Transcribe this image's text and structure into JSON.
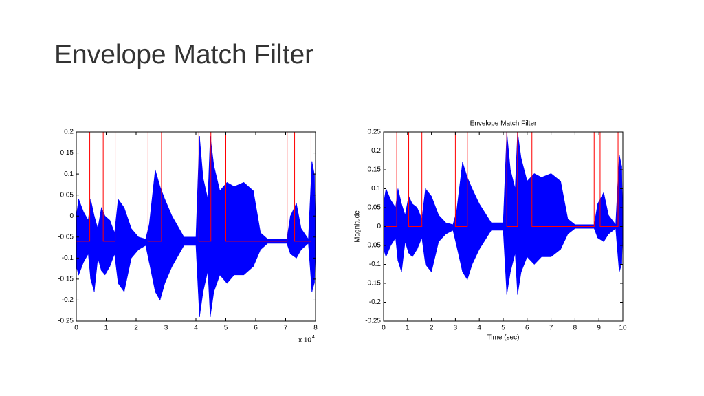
{
  "slide_title": "Envelope Match Filter",
  "chart_data": [
    {
      "type": "envelope",
      "xlim": [
        0,
        8
      ],
      "xticks": [
        0,
        1,
        2,
        3,
        4,
        5,
        6,
        7,
        8
      ],
      "ylim": [
        -0.25,
        0.2
      ],
      "yticks": [
        -0.25,
        -0.2,
        -0.15,
        -0.1,
        -0.05,
        0,
        0.05,
        0.1,
        0.15,
        0.2
      ],
      "x_multiplier": "x 10",
      "x_exponent": "4",
      "signal": {
        "color": "#0000ff",
        "x": [
          0,
          0.08,
          0.24,
          0.4,
          0.48,
          0.6,
          0.72,
          0.84,
          0.96,
          1.12,
          1.28,
          1.4,
          1.6,
          1.84,
          2.08,
          2.32,
          2.44,
          2.64,
          2.8,
          2.96,
          3.2,
          3.6,
          3.84,
          4,
          4.12,
          4.24,
          4.4,
          4.48,
          4.6,
          4.8,
          5.04,
          5.28,
          5.6,
          5.92,
          6.16,
          6.4,
          6.8,
          7.04,
          7.16,
          7.36,
          7.52,
          7.76,
          7.88,
          7.96,
          8
        ],
        "upper": [
          0,
          0.04,
          0.01,
          -0.01,
          0.04,
          0,
          -0.03,
          0.02,
          0,
          -0.01,
          -0.04,
          0.04,
          0.02,
          -0.03,
          -0.05,
          -0.055,
          -0.02,
          0.11,
          0.07,
          0.04,
          0,
          -0.05,
          -0.05,
          -0.05,
          0.19,
          0.09,
          0.04,
          0.19,
          0.12,
          0.06,
          0.08,
          0.07,
          0.08,
          0.06,
          -0.04,
          -0.055,
          -0.055,
          -0.055,
          0,
          0.03,
          -0.03,
          -0.055,
          0.13,
          0.1,
          -0.055
        ],
        "lower": [
          -0.12,
          -0.14,
          -0.11,
          -0.09,
          -0.15,
          -0.18,
          -0.1,
          -0.13,
          -0.14,
          -0.12,
          -0.09,
          -0.16,
          -0.18,
          -0.1,
          -0.08,
          -0.07,
          -0.11,
          -0.18,
          -0.2,
          -0.16,
          -0.12,
          -0.07,
          -0.07,
          -0.07,
          -0.24,
          -0.18,
          -0.13,
          -0.24,
          -0.18,
          -0.14,
          -0.16,
          -0.14,
          -0.14,
          -0.12,
          -0.08,
          -0.065,
          -0.065,
          -0.065,
          -0.09,
          -0.1,
          -0.08,
          -0.065,
          -0.18,
          -0.16,
          -0.065
        ]
      },
      "gate": {
        "color": "#ff0000",
        "x": [
          0,
          0.45,
          0.45,
          0.9,
          0.9,
          1.3,
          1.3,
          2.4,
          2.4,
          2.85,
          2.85,
          4.1,
          4.1,
          4.5,
          4.5,
          5.0,
          5.0,
          7.05,
          7.05,
          7.3,
          7.3,
          7.85,
          7.85,
          8
        ],
        "values": [
          -0.06,
          -0.06,
          0.2,
          0.2,
          -0.06,
          -0.06,
          0.2,
          0.2,
          -0.06,
          -0.06,
          0.2,
          0.2,
          -0.06,
          -0.06,
          0.2,
          0.2,
          -0.06,
          -0.06,
          0.2,
          0.2,
          -0.06,
          -0.06,
          0.2,
          0.2
        ]
      }
    },
    {
      "type": "envelope",
      "title": "Envelope Match Filter",
      "xlabel": "Time (sec)",
      "ylabel": "Magnitude",
      "xlim": [
        0,
        10
      ],
      "xticks": [
        0,
        1,
        2,
        3,
        4,
        5,
        6,
        7,
        8,
        9,
        10
      ],
      "ylim": [
        -0.25,
        0.25
      ],
      "yticks": [
        -0.25,
        -0.2,
        -0.15,
        -0.1,
        -0.05,
        0,
        0.05,
        0.1,
        0.15,
        0.2,
        0.25
      ],
      "signal": {
        "color": "#0000ff",
        "x": [
          0,
          0.1,
          0.3,
          0.5,
          0.6,
          0.75,
          0.9,
          1.05,
          1.2,
          1.4,
          1.6,
          1.75,
          2.0,
          2.3,
          2.6,
          2.9,
          3.05,
          3.3,
          3.5,
          3.7,
          4.0,
          4.5,
          4.8,
          5.0,
          5.15,
          5.3,
          5.5,
          5.6,
          5.75,
          6.0,
          6.3,
          6.6,
          7.0,
          7.4,
          7.7,
          8.0,
          8.5,
          8.8,
          8.95,
          9.2,
          9.4,
          9.7,
          9.85,
          9.95,
          10
        ],
        "upper": [
          0.06,
          0.1,
          0.07,
          0.05,
          0.1,
          0.06,
          0.03,
          0.08,
          0.06,
          0.05,
          0.02,
          0.1,
          0.08,
          0.03,
          0.01,
          0.005,
          0.04,
          0.17,
          0.13,
          0.1,
          0.06,
          0.01,
          0.01,
          0.01,
          0.25,
          0.15,
          0.1,
          0.25,
          0.18,
          0.12,
          0.14,
          0.13,
          0.14,
          0.12,
          0.02,
          0.005,
          0.005,
          0.005,
          0.06,
          0.09,
          0.03,
          0.005,
          0.19,
          0.16,
          0.005
        ],
        "lower": [
          -0.06,
          -0.08,
          -0.05,
          -0.03,
          -0.09,
          -0.12,
          -0.04,
          -0.07,
          -0.08,
          -0.06,
          -0.03,
          -0.1,
          -0.12,
          -0.04,
          -0.02,
          -0.01,
          -0.05,
          -0.12,
          -0.14,
          -0.1,
          -0.06,
          -0.01,
          -0.01,
          -0.01,
          -0.18,
          -0.12,
          -0.07,
          -0.18,
          -0.12,
          -0.08,
          -0.1,
          -0.08,
          -0.08,
          -0.06,
          -0.02,
          -0.005,
          -0.005,
          -0.005,
          -0.03,
          -0.04,
          -0.02,
          -0.005,
          -0.12,
          -0.1,
          -0.005
        ]
      },
      "gate": {
        "color": "#ff0000",
        "x": [
          0,
          0.55,
          0.55,
          1.05,
          1.05,
          1.6,
          1.6,
          3.0,
          3.0,
          3.5,
          3.5,
          5.15,
          5.15,
          5.6,
          5.6,
          6.2,
          6.2,
          8.8,
          8.8,
          9.05,
          9.05,
          9.8,
          9.8,
          10
        ],
        "values": [
          0,
          0,
          0.25,
          0.25,
          0,
          0,
          0.25,
          0.25,
          0,
          0,
          0.25,
          0.25,
          0,
          0,
          0.25,
          0.25,
          0,
          0,
          0.25,
          0.25,
          0,
          0,
          0.25,
          0.25
        ]
      }
    }
  ]
}
